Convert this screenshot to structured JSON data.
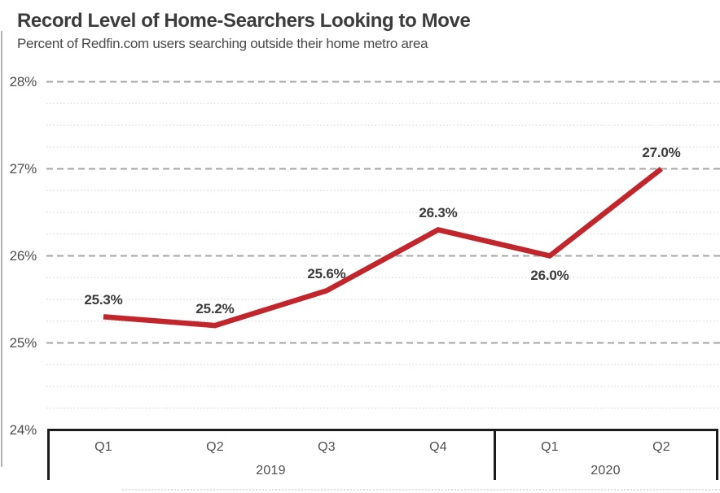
{
  "header": {
    "title": "Record Level of Home-Searchers Looking to Move",
    "subtitle": "Percent of Redfin.com users searching outside their home metro area"
  },
  "chart_data": {
    "type": "line",
    "title": "Record Level of Home-Searchers Looking to Move",
    "subtitle": "Percent of Redfin.com users searching outside their home metro area",
    "categories": [
      "Q1",
      "Q2",
      "Q3",
      "Q4",
      "Q1",
      "Q2"
    ],
    "year_groups": [
      {
        "label": "2019",
        "quarters": 4
      },
      {
        "label": "2020",
        "quarters": 2
      }
    ],
    "series": [
      {
        "name": "percent-searching-outside-home-metro",
        "color": "#c0262b",
        "values": [
          25.3,
          25.2,
          25.6,
          26.3,
          26.0,
          27.0
        ]
      }
    ],
    "data_labels": [
      "25.3%",
      "25.2%",
      "25.6%",
      "26.3%",
      "26.0%",
      "27.0%"
    ],
    "data_label_positions": [
      "above",
      "above",
      "above",
      "above",
      "below",
      "above"
    ],
    "ylabel": "",
    "xlabel": "",
    "ylim": [
      24,
      28
    ],
    "y_ticks": [
      {
        "value": 28,
        "label": "28%"
      },
      {
        "value": 27,
        "label": "27%"
      },
      {
        "value": 26,
        "label": "26%"
      },
      {
        "value": 25,
        "label": "25%"
      },
      {
        "value": 24,
        "label": "24%"
      }
    ],
    "grid": {
      "major": "dashed",
      "major_color": "#a5a5a5",
      "minor": "dotted",
      "minor_color": "#e3dfdf",
      "minor_step": 0.25,
      "legend": "none"
    }
  },
  "colors": {
    "line": "#c0262b",
    "title_text": "#3c3c3c",
    "axis_text": "#4d4d4d",
    "box_border": "#1b1b1b"
  }
}
